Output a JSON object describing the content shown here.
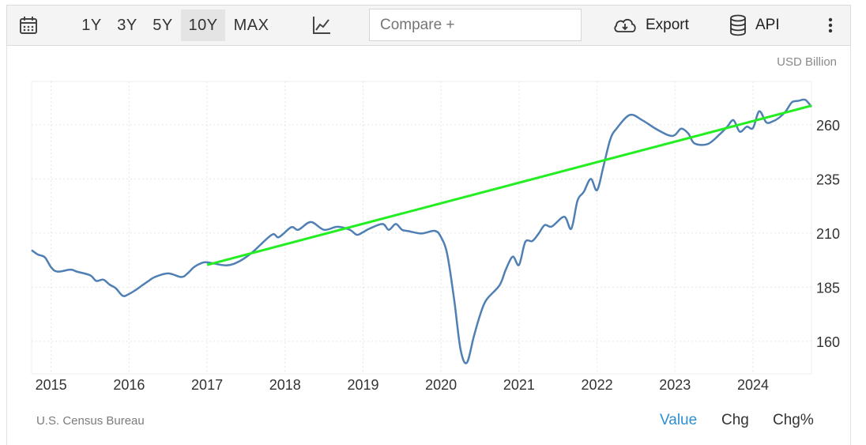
{
  "toolbar": {
    "calendar_icon": "calendar-icon",
    "ranges": [
      {
        "label": "1Y",
        "active": false
      },
      {
        "label": "3Y",
        "active": false
      },
      {
        "label": "5Y",
        "active": false
      },
      {
        "label": "10Y",
        "active": true
      },
      {
        "label": "MAX",
        "active": false
      }
    ],
    "chart_type_icon": "line-chart-icon",
    "compare_placeholder": "Compare +",
    "export_label": "Export",
    "api_label": "API",
    "more_icon": "more-vertical-icon"
  },
  "unit_label": "USD Billion",
  "source": "U.S. Census Bureau",
  "value_tabs": [
    {
      "label": "Value",
      "active": true
    },
    {
      "label": "Chg",
      "active": false
    },
    {
      "label": "Chg%",
      "active": false
    }
  ],
  "colors": {
    "series": "#4f7fb3",
    "trend": "#22ee22",
    "active_tab": "#2d8fd0"
  },
  "chart_data": {
    "type": "line",
    "grid": true,
    "x_tick_labels": [
      "2015",
      "2016",
      "2017",
      "2018",
      "2019",
      "2020",
      "2021",
      "2022",
      "2023",
      "2024"
    ],
    "y_ticks": [
      160,
      185,
      210,
      235,
      260
    ],
    "xlim": [
      2014.75,
      2024.75
    ],
    "ylim": [
      145,
      280
    ],
    "y_axis_position": "right",
    "series": [
      {
        "style": "line",
        "x": [
          2014.75,
          2014.83,
          2014.92,
          2015.0,
          2015.08,
          2015.25,
          2015.33,
          2015.5,
          2015.58,
          2015.67,
          2015.75,
          2015.83,
          2015.92,
          2016.0,
          2016.08,
          2016.17,
          2016.25,
          2016.33,
          2016.5,
          2016.67,
          2016.75,
          2016.83,
          2016.92,
          2017.0,
          2017.25,
          2017.42,
          2017.58,
          2017.83,
          2017.92,
          2018.08,
          2018.17,
          2018.33,
          2018.5,
          2018.67,
          2018.83,
          2018.92,
          2019.0,
          2019.08,
          2019.25,
          2019.33,
          2019.42,
          2019.5,
          2019.58,
          2019.75,
          2019.92,
          2020.0,
          2020.08,
          2020.17,
          2020.25,
          2020.33,
          2020.42,
          2020.5,
          2020.58,
          2020.75,
          2020.83,
          2020.92,
          2021.0,
          2021.08,
          2021.17,
          2021.25,
          2021.33,
          2021.42,
          2021.58,
          2021.67,
          2021.75,
          2021.83,
          2021.92,
          2022.0,
          2022.08,
          2022.17,
          2022.25,
          2022.42,
          2022.58,
          2022.75,
          2022.92,
          2023.0,
          2023.08,
          2023.17,
          2023.25,
          2023.42,
          2023.58,
          2023.67,
          2023.75,
          2023.83,
          2023.92,
          2024.0,
          2024.08,
          2024.17,
          2024.25,
          2024.33,
          2024.42,
          2024.5,
          2024.58,
          2024.67,
          2024.75
        ],
        "y": [
          202.1,
          200.1,
          198.8,
          194.2,
          192.2,
          193.1,
          192.2,
          190.5,
          187.9,
          188.5,
          186.2,
          184.5,
          181.0,
          181.9,
          183.6,
          185.9,
          187.9,
          189.7,
          191.4,
          189.7,
          191.4,
          194.2,
          196.0,
          196.5,
          195.1,
          197.1,
          201.1,
          209.2,
          208.1,
          212.7,
          211.5,
          215.1,
          211.5,
          212.9,
          211.5,
          209.2,
          210.4,
          212.0,
          214.2,
          211.5,
          214.2,
          211.5,
          210.9,
          209.8,
          211.0,
          208.1,
          200.1,
          178.8,
          156.3,
          150.1,
          162.2,
          172.1,
          179.1,
          185.9,
          193.1,
          199.1,
          195.3,
          205.9,
          206.3,
          209.7,
          213.7,
          213.0,
          217.5,
          212.0,
          225.0,
          229.0,
          235.0,
          229.8,
          240.4,
          253.2,
          258.2,
          264.5,
          262.1,
          258.2,
          255.1,
          255.3,
          258.2,
          256.0,
          251.4,
          251.1,
          255.8,
          259.1,
          262.1,
          256.8,
          259.1,
          258.5,
          266.2,
          261.1,
          261.5,
          263.1,
          266.2,
          270.4,
          271.0,
          271.5,
          268.2
        ]
      },
      {
        "style": "trend",
        "x": [
          2017.0,
          2024.75
        ],
        "y": [
          195.3,
          268.8
        ]
      }
    ]
  }
}
